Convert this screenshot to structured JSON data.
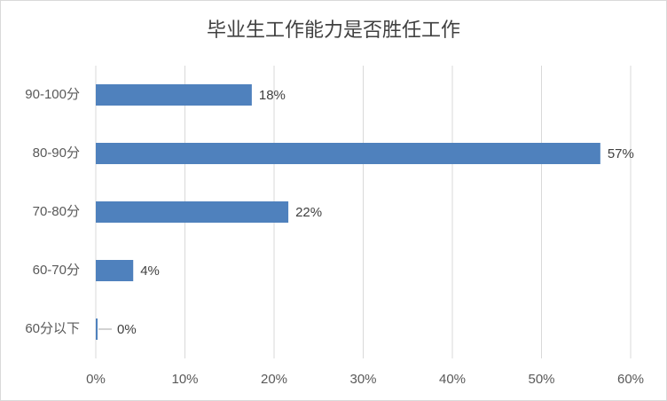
{
  "chart_data": {
    "type": "barh",
    "title": "毕业生工作能力是否胜任工作",
    "categories": [
      "90-100分",
      "80-90分",
      "70-80分",
      "60-70分",
      "60分以下"
    ],
    "values": [
      17.5,
      56.6,
      21.6,
      4.2,
      0.2
    ],
    "value_labels": [
      "18%",
      "57%",
      "22%",
      "4%",
      "0%"
    ],
    "color": "#4f81bd",
    "xlim": [
      0,
      60
    ],
    "xticks": [
      {
        "value": 0,
        "label": "0%"
      },
      {
        "value": 10,
        "label": "10%"
      },
      {
        "value": 20,
        "label": "20%"
      },
      {
        "value": 30,
        "label": "30%"
      },
      {
        "value": 40,
        "label": "40%"
      },
      {
        "value": 50,
        "label": "50%"
      },
      {
        "value": 60,
        "label": "60%"
      }
    ],
    "grid": true
  }
}
